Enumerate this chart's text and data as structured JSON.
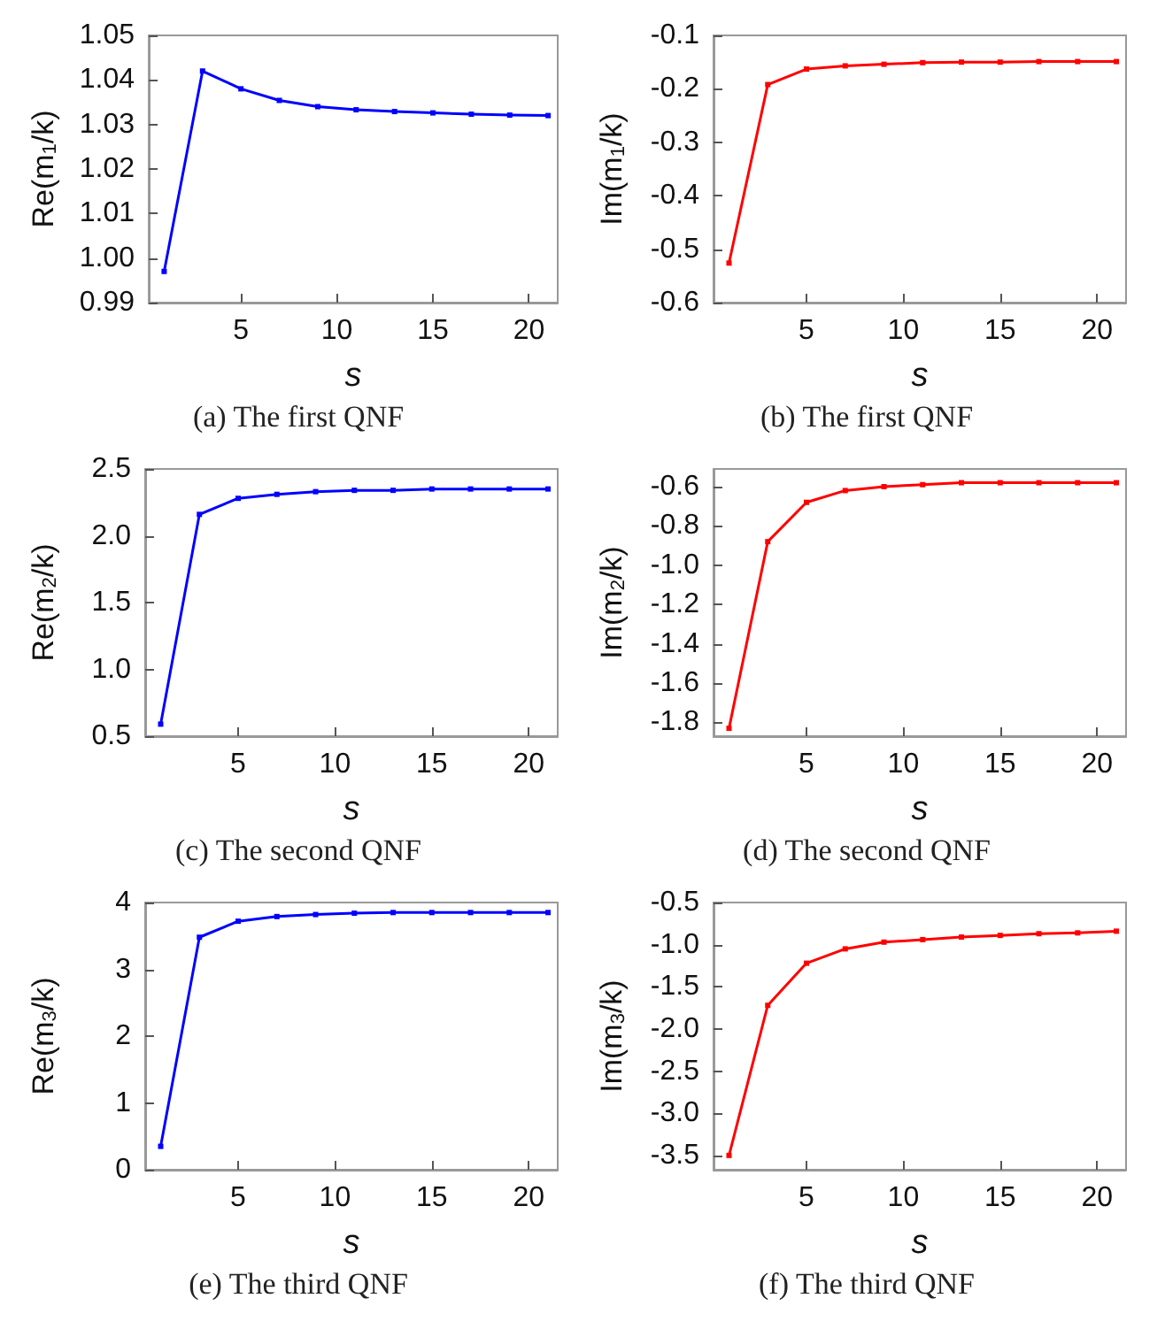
{
  "chart_data": [
    {
      "type": "line",
      "title": "(a) The first QNF",
      "xlabel": "s",
      "ylabel": "Re(m$_{1}$/k)",
      "marker": "square",
      "line_style": "solid",
      "grid": false,
      "xlim": [
        0.2,
        21.5
      ],
      "xticks": [
        5,
        10,
        15,
        20
      ],
      "ylim": [
        0.99,
        1.05
      ],
      "yticks": [
        0.99,
        {
          "value": 1.0,
          "label": "1.00"
        },
        1.01,
        1.02,
        1.03,
        1.04,
        1.05
      ],
      "x": [
        1,
        3,
        5,
        7,
        9,
        11,
        13,
        15,
        17,
        19,
        21
      ],
      "series": [
        {
          "color": "#0000ff",
          "values": [
            0.997,
            1.042,
            1.038,
            1.0354,
            1.034,
            1.0333,
            1.0329,
            1.0326,
            1.0323,
            1.0321,
            1.032
          ]
        }
      ]
    },
    {
      "type": "line",
      "title": "(b) The first QNF",
      "xlabel": "s",
      "ylabel": "Im(m$_{1}$/k)",
      "marker": "square",
      "line_style": "solid",
      "grid": false,
      "xlim": [
        0.2,
        21.5
      ],
      "xticks": [
        5,
        10,
        15,
        20
      ],
      "ylim": [
        -0.6,
        -0.1
      ],
      "yticks": [
        -0.6,
        -0.5,
        -0.4,
        -0.3,
        -0.2,
        -0.1
      ],
      "x": [
        1,
        3,
        5,
        7,
        9,
        11,
        13,
        15,
        17,
        19,
        21
      ],
      "series": [
        {
          "color": "#ff0000",
          "values": [
            -0.526,
            -0.192,
            -0.163,
            -0.157,
            -0.154,
            -0.151,
            -0.15,
            -0.15,
            -0.149,
            -0.149,
            -0.149
          ]
        }
      ]
    },
    {
      "type": "line",
      "title": "(c) The second QNF",
      "xlabel": "s",
      "ylabel": "Re(m$_{2}$/k)",
      "marker": "square",
      "line_style": "solid",
      "grid": false,
      "xlim": [
        0.2,
        21.5
      ],
      "xticks": [
        5,
        10,
        15,
        20
      ],
      "ylim": [
        0.5,
        2.5
      ],
      "yticks": [
        0.5,
        {
          "value": 1,
          "label": "1.0"
        },
        1.5,
        {
          "value": 2,
          "label": "2.0"
        },
        2.5
      ],
      "x": [
        1,
        3,
        5,
        7,
        9,
        11,
        13,
        15,
        17,
        19,
        21
      ],
      "series": [
        {
          "color": "#0000ff",
          "values": [
            0.59,
            2.16,
            2.28,
            2.31,
            2.33,
            2.34,
            2.34,
            2.35,
            2.35,
            2.35,
            2.35
          ]
        }
      ]
    },
    {
      "type": "line",
      "title": "(d) The second QNF",
      "xlabel": "s",
      "ylabel": "Im(m$_{2}$/k)",
      "marker": "square",
      "line_style": "solid",
      "grid": false,
      "xlim": [
        0.2,
        21.5
      ],
      "xticks": [
        5,
        10,
        15,
        20
      ],
      "ylim": [
        -1.87,
        -0.51
      ],
      "yticks": [
        -1.8,
        -1.6,
        -1.4,
        -1.2,
        {
          "value": -1,
          "label": "-1.0"
        },
        -0.8,
        -0.6
      ],
      "x": [
        1,
        3,
        5,
        7,
        9,
        11,
        13,
        15,
        17,
        19,
        21
      ],
      "series": [
        {
          "color": "#ff0000",
          "values": [
            -1.83,
            -0.88,
            -0.68,
            -0.62,
            -0.6,
            -0.59,
            -0.58,
            -0.58,
            -0.58,
            -0.58,
            -0.58
          ]
        }
      ]
    },
    {
      "type": "line",
      "title": "(e) The third QNF",
      "xlabel": "s",
      "ylabel": "Re(m$_{3}$/k)",
      "marker": "square",
      "line_style": "solid",
      "grid": false,
      "xlim": [
        0.2,
        21.5
      ],
      "xticks": [
        5,
        10,
        15,
        20
      ],
      "ylim": [
        0,
        4
      ],
      "yticks": [
        0,
        1,
        2,
        3,
        4
      ],
      "x": [
        1,
        3,
        5,
        7,
        9,
        11,
        13,
        15,
        17,
        19,
        21
      ],
      "series": [
        {
          "color": "#0000ff",
          "values": [
            0.35,
            3.48,
            3.72,
            3.79,
            3.82,
            3.84,
            3.85,
            3.85,
            3.85,
            3.85,
            3.85
          ]
        }
      ]
    },
    {
      "type": "line",
      "title": "(f) The third QNF",
      "xlabel": "s",
      "ylabel": "Im(m$_{3}$/k)",
      "marker": "square",
      "line_style": "solid",
      "grid": false,
      "xlim": [
        0.2,
        21.5
      ],
      "xticks": [
        5,
        10,
        15,
        20
      ],
      "ylim": [
        -3.67,
        -0.5
      ],
      "yticks": [
        -3.5,
        {
          "value": -3,
          "label": "-3.0"
        },
        -2.5,
        {
          "value": -2,
          "label": "-2.0"
        },
        -1.5,
        {
          "value": -1,
          "label": "-1.0"
        },
        -0.5
      ],
      "x": [
        1,
        3,
        5,
        7,
        9,
        11,
        13,
        15,
        17,
        19,
        21
      ],
      "series": [
        {
          "color": "#ff0000",
          "values": [
            -3.5,
            -1.72,
            -1.22,
            -1.05,
            -0.97,
            -0.94,
            -0.91,
            -0.89,
            -0.87,
            -0.86,
            -0.84
          ]
        }
      ]
    }
  ]
}
